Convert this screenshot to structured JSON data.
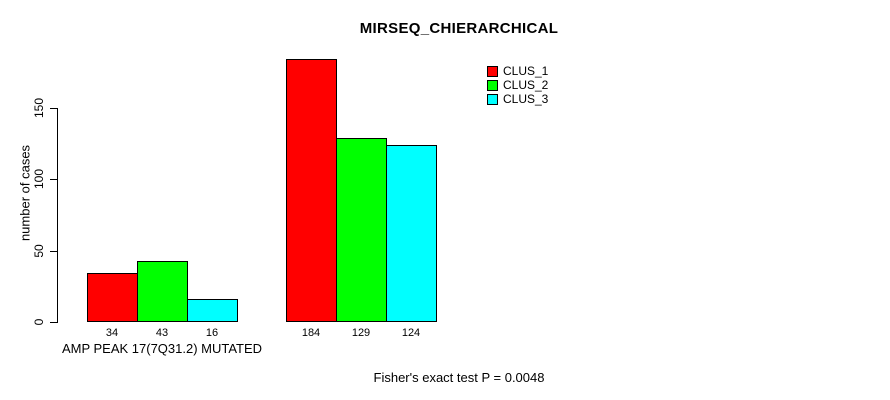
{
  "chart_data": {
    "type": "bar",
    "title": "MIRSEQ_CHIERARCHICAL",
    "ylabel": "number of cases",
    "xlabel": "",
    "ylim": [
      0,
      150
    ],
    "yticks": [
      0,
      50,
      100,
      150
    ],
    "grid": false,
    "legend_position": "top-right-inside",
    "series": [
      {
        "name": "CLUS_1",
        "color": "#FF0000"
      },
      {
        "name": "CLUS_2",
        "color": "#00FF00"
      },
      {
        "name": "CLUS_3",
        "color": "#00FFFF"
      }
    ],
    "groups": [
      {
        "label": "AMP PEAK 17(7Q31.2) MUTATED",
        "values": [
          34,
          43,
          16
        ]
      },
      {
        "label": "",
        "values": [
          184,
          129,
          124
        ]
      }
    ],
    "bar_border_color": "#000000",
    "text_color": "#000000",
    "background_color": "#FFFFFF",
    "annotation": "Fisher's exact test P = 0.0048"
  }
}
